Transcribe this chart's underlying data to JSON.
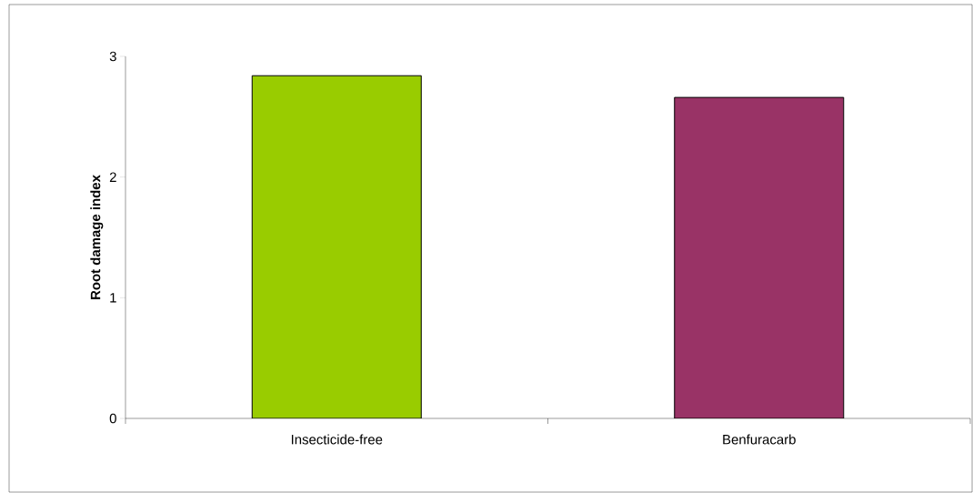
{
  "chart_data": {
    "type": "bar",
    "ylabel": "Root damage index",
    "categories": [
      "Insecticide-free",
      "Benfuracarb"
    ],
    "values": [
      2.84,
      2.66
    ],
    "colors": [
      "#99cc00",
      "#993366"
    ],
    "ylim": [
      0,
      3
    ],
    "yticks": [
      0,
      1,
      2,
      3
    ],
    "grid": false
  }
}
